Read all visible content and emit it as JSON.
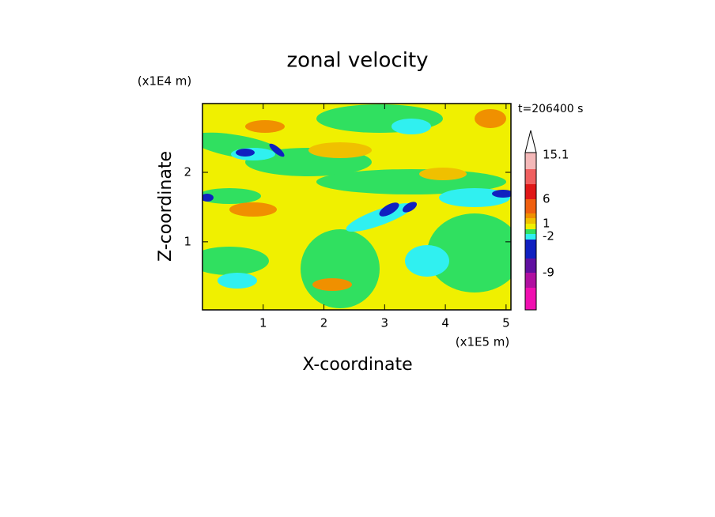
{
  "chart_data": {
    "type": "contour",
    "title": "zonal velocity",
    "x_label": "X-coordinate",
    "y_label": "Z-coordinate",
    "x_unit": "(x1E5 m)",
    "y_unit": "(x1E4 m)",
    "time_label": "t=206400 s",
    "xlim": [
      0,
      5.08
    ],
    "ylim": [
      0.02,
      2.99
    ],
    "xticks": [
      1,
      2,
      3,
      4,
      5
    ],
    "yticks": [
      1,
      2
    ],
    "colorbar_ticks": [
      15.1,
      6,
      1,
      -2,
      -9
    ]
  }
}
